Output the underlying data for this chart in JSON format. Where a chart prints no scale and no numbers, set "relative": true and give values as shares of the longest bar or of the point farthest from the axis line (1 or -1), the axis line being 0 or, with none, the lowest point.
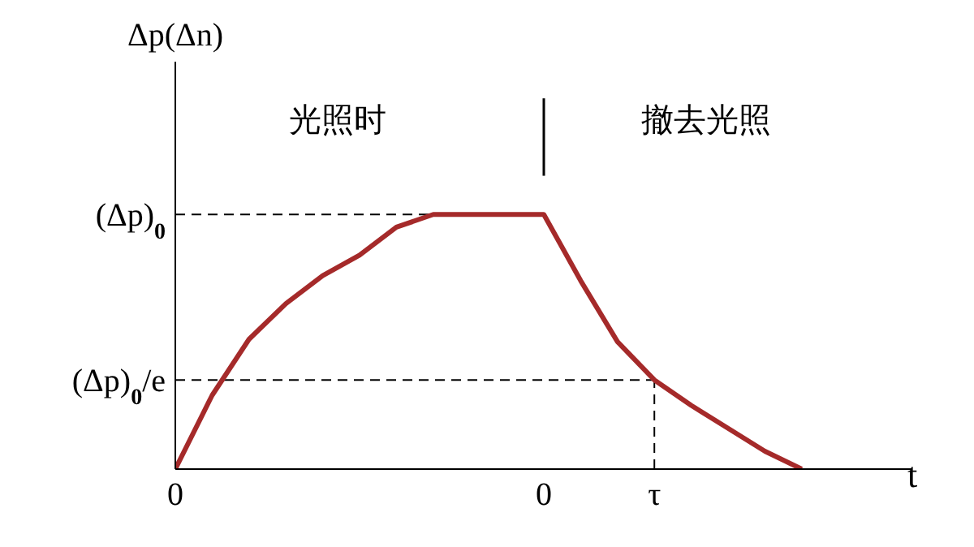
{
  "chart_data": {
    "type": "line",
    "xlabel": "t",
    "ylabel": "Δp(Δn)",
    "relative": true,
    "categories": [
      "0",
      null,
      null,
      null,
      null,
      null,
      null,
      null,
      null,
      null,
      "0",
      null,
      null,
      "τ",
      null,
      null,
      null,
      null,
      null,
      null,
      null
    ],
    "series": [
      {
        "color": "#a52a2a",
        "values": [
          0,
          0.29,
          0.51,
          0.65,
          0.76,
          0.84,
          0.95,
          1,
          1,
          1,
          1,
          0.74,
          0.5,
          0.35,
          0.25,
          0.16,
          0.07,
          0,
          null,
          null,
          null
        ]
      }
    ],
    "ref_lines": [
      {
        "axis": "y",
        "value": 1,
        "label": "(Δp)$_{0}$",
        "line_style": "dashed"
      },
      {
        "axis": "y",
        "value": 0.35,
        "label": "(Δp)$_{0}$/e",
        "line_style": "dashed"
      },
      {
        "axis": "x",
        "value": "τ",
        "line_style": "dashed"
      }
    ],
    "annotations": [
      "光照时",
      "撤去光照"
    ],
    "grid": false,
    "legend": false,
    "marker": "none",
    "line_style": "solid"
  }
}
